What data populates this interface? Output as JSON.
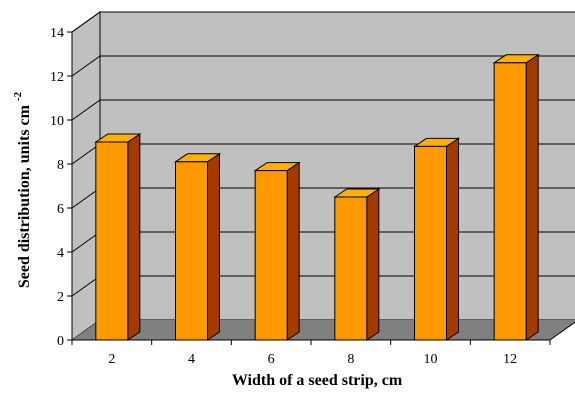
{
  "chart_data": {
    "type": "bar",
    "style": "3d-bar",
    "categories": [
      "2",
      "4",
      "6",
      "8",
      "10",
      "12"
    ],
    "values": [
      9.0,
      8.1,
      7.7,
      6.5,
      8.8,
      12.6
    ],
    "title": "",
    "xlabel": "Width of a seed strip, cm",
    "ylabel": "Seed distribution, units cm",
    "ylabel_superscript": "-2",
    "ylim": [
      0,
      14
    ],
    "yticks": [
      "0",
      "2",
      "4",
      "6",
      "8",
      "10",
      "12",
      "14"
    ],
    "grid": true,
    "colors": {
      "bar_front": "#FF9900",
      "bar_side": "#A33A00",
      "bar_top": "#FFB000",
      "back_wall": "#C0C0C0",
      "floor": "#808080",
      "gridline": "#000000"
    }
  }
}
